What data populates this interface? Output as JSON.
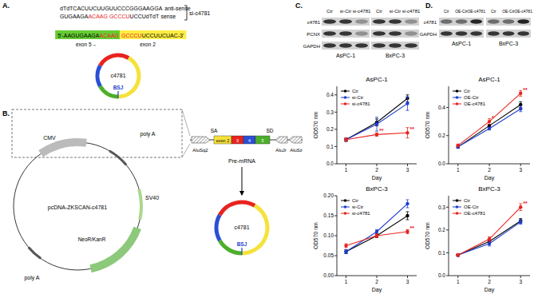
{
  "panels": {
    "A": "A.",
    "B": "B.",
    "C": "C.",
    "D": "D."
  },
  "panel_a": {
    "antisense": "dTdTCACUUCUUGUUCCCGGGAAGGA",
    "antisense_label": "anti-sense",
    "sense": [
      {
        "text": "GUGAAGA",
        "highlight": false
      },
      {
        "text": "ACAAG",
        "highlight": true
      },
      {
        "text": "GCCCU",
        "highlight": true
      },
      {
        "text": "UCCUdTdT",
        "highlight": false
      }
    ],
    "sense_label": "sense",
    "sirna": "si-c4781",
    "target_exon5": [
      {
        "text": "5'-AAGUGAAGA",
        "highlight": false
      },
      {
        "text": "ACAAG",
        "highlight": true
      }
    ],
    "target_exon2": [
      {
        "text": "GCCCU",
        "highlight": true
      },
      {
        "text": "UCCUUCUAC-3'",
        "highlight": false
      }
    ],
    "exon5": "exon 5→",
    "exon2": "exon 2",
    "bsj": "BSJ",
    "circle": "c4781"
  },
  "panel_b": {
    "cmv": "CMV",
    "polya_top": "poly A",
    "sv40": "SV40",
    "neo": "NeoR/KanR",
    "polya_bottom": "poly A",
    "plasmid": "pcDNA-ZKSCAN-c4781",
    "sa": "SA",
    "sd": "SD",
    "alu_left": "AluSq2",
    "alu_right1": "AluJr",
    "alu_right2": "AluSz",
    "exons": [
      "exon 2",
      "3",
      "4",
      "5"
    ],
    "premrna": "Pre-mRNA",
    "bsj": "BSJ",
    "circle": "c4781"
  },
  "blot_c": {
    "lanes": [
      "Ctr",
      "si-Ctr",
      "si-c4781"
    ],
    "rows": [
      "c4781",
      "PCNX",
      "GAPDH"
    ],
    "cells": [
      "AsPC-1",
      "BxPC-3"
    ]
  },
  "blot_d": {
    "lanes": [
      "Ctr",
      "OE-Ctr",
      "OE-c4781"
    ],
    "rows": [
      "c4781",
      "GAPDH"
    ],
    "cells": [
      "AsPC-1",
      "BxPC-3"
    ]
  },
  "chart_data": [
    {
      "type": "line",
      "title": "AsPC-1",
      "xlabel": "Day",
      "ylabel": "OD570 nm",
      "x": [
        1,
        2,
        3
      ],
      "xlim": [
        0.7,
        3.3
      ],
      "xticks": [
        1,
        2,
        3
      ],
      "ylim": [
        0,
        0.45
      ],
      "yticks": [
        {
          "value": 0,
          "label": "0.0"
        },
        {
          "value": 0.1,
          "label": "0.1"
        },
        {
          "value": 0.2,
          "label": "0.2"
        },
        {
          "value": 0.3,
          "label": "0.3"
        },
        {
          "value": 0.4,
          "label": "0.4"
        }
      ],
      "grid": false,
      "legend": "upper left",
      "series": [
        {
          "name": "Ctr",
          "color": "#000000",
          "marker": "circle",
          "line_style": "solid",
          "values": [
            0.14,
            0.24,
            0.38
          ],
          "errors": [
            0.01,
            0.02,
            0.02
          ]
        },
        {
          "name": "si-Ctr",
          "color": "#1f3fd0",
          "marker": "circle",
          "line_style": "solid",
          "values": [
            0.14,
            0.23,
            0.35
          ],
          "errors": [
            0.01,
            0.04,
            0.04
          ]
        },
        {
          "name": "si-c4781",
          "color": "#e8231f",
          "marker": "circle",
          "line_style": "solid",
          "values": [
            0.14,
            0.17,
            0.18
          ],
          "errors": [
            0.01,
            0.01,
            0.03
          ]
        }
      ],
      "annotations": [
        {
          "x": 2,
          "text": "**"
        },
        {
          "x": 3,
          "text": "**"
        }
      ]
    },
    {
      "type": "line",
      "title": "BxPC-3",
      "xlabel": "Day",
      "ylabel": "OD570 nm",
      "x": [
        1,
        2,
        3
      ],
      "xlim": [
        0.7,
        3.3
      ],
      "xticks": [
        1,
        2,
        3
      ],
      "ylim": [
        0,
        0.2
      ],
      "yticks": [
        {
          "value": 0,
          "label": "0.00"
        },
        {
          "value": 0.05,
          "label": "0.05"
        },
        {
          "value": 0.1,
          "label": "0.10"
        },
        {
          "value": 0.15,
          "label": "0.15"
        },
        {
          "value": 0.2,
          "label": "0.20"
        }
      ],
      "grid": false,
      "legend": "upper left",
      "series": [
        {
          "name": "Ctr",
          "color": "#000000",
          "marker": "circle",
          "line_style": "solid",
          "values": [
            0.06,
            0.1,
            0.15
          ],
          "errors": [
            0.005,
            0.005,
            0.01
          ]
        },
        {
          "name": "si-Ctr",
          "color": "#1f3fd0",
          "marker": "circle",
          "line_style": "solid",
          "values": [
            0.06,
            0.11,
            0.18
          ],
          "errors": [
            0.005,
            0.005,
            0.01
          ]
        },
        {
          "name": "si-c4781",
          "color": "#e8231f",
          "marker": "circle",
          "line_style": "solid",
          "values": [
            0.075,
            0.1,
            0.11
          ],
          "errors": [
            0.005,
            0.005,
            0.005
          ]
        }
      ],
      "annotations": [
        {
          "x": 3,
          "text": "**"
        }
      ]
    },
    {
      "type": "line",
      "title": "AsPC-1",
      "xlabel": "Day",
      "ylabel": "OD570 nm",
      "x": [
        1,
        2,
        3
      ],
      "xlim": [
        0.7,
        3.3
      ],
      "xticks": [
        1,
        2,
        3
      ],
      "ylim": [
        0,
        0.55
      ],
      "yticks": [
        {
          "value": 0,
          "label": "0.0"
        },
        {
          "value": 0.2,
          "label": "0.2"
        },
        {
          "value": 0.4,
          "label": "0.4"
        }
      ],
      "grid": false,
      "legend": "upper left",
      "series": [
        {
          "name": "Ctr",
          "color": "#000000",
          "marker": "circle",
          "line_style": "solid",
          "values": [
            0.12,
            0.27,
            0.42
          ],
          "errors": [
            0.01,
            0.01,
            0.02
          ]
        },
        {
          "name": "OE-Ctr",
          "color": "#1f3fd0",
          "marker": "circle",
          "line_style": "solid",
          "values": [
            0.12,
            0.25,
            0.39
          ],
          "errors": [
            0.01,
            0.01,
            0.02
          ]
        },
        {
          "name": "OE-c4781",
          "color": "#e8231f",
          "marker": "circle",
          "line_style": "solid",
          "values": [
            0.13,
            0.3,
            0.5
          ],
          "errors": [
            0.01,
            0.02,
            0.02
          ]
        }
      ],
      "annotations": [
        {
          "x": 2,
          "text": "*"
        },
        {
          "x": 3,
          "text": "**"
        }
      ]
    },
    {
      "type": "line",
      "title": "BxPC-3",
      "xlabel": "Day",
      "ylabel": "OD570 nm",
      "x": [
        1,
        2,
        3
      ],
      "xlim": [
        0.7,
        3.3
      ],
      "xticks": [
        1,
        2,
        3
      ],
      "ylim": [
        0,
        0.35
      ],
      "yticks": [
        {
          "value": 0,
          "label": "0.0"
        },
        {
          "value": 0.1,
          "label": "0.1"
        },
        {
          "value": 0.2,
          "label": "0.2"
        },
        {
          "value": 0.3,
          "label": "0.3"
        }
      ],
      "grid": false,
      "legend": "upper left",
      "series": [
        {
          "name": "Ctr",
          "color": "#000000",
          "marker": "circle",
          "line_style": "solid",
          "values": [
            0.09,
            0.15,
            0.24
          ],
          "errors": [
            0.005,
            0.01,
            0.01
          ]
        },
        {
          "name": "OE-Ctr",
          "color": "#1f3fd0",
          "marker": "circle",
          "line_style": "solid",
          "values": [
            0.09,
            0.14,
            0.235
          ],
          "errors": [
            0.005,
            0.01,
            0.01
          ]
        },
        {
          "name": "OE-c4781",
          "color": "#e8231f",
          "marker": "circle",
          "line_style": "solid",
          "values": [
            0.09,
            0.16,
            0.3
          ],
          "errors": [
            0.005,
            0.01,
            0.015
          ]
        }
      ],
      "annotations": [
        {
          "x": 3,
          "text": "**"
        }
      ]
    }
  ]
}
